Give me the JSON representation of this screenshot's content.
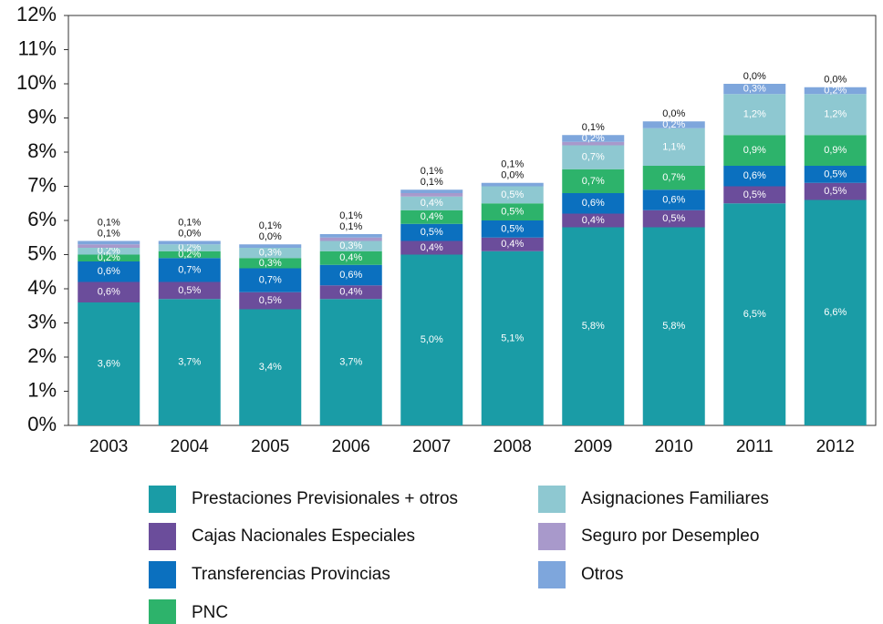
{
  "chart_data": {
    "type": "stacked_bar",
    "categories": [
      "2003",
      "2004",
      "2005",
      "2006",
      "2007",
      "2008",
      "2009",
      "2010",
      "2011",
      "2012"
    ],
    "series": [
      {
        "name": "Prestaciones Previsionales + otros",
        "color": "#1a9ca6",
        "values": [
          3.6,
          3.7,
          3.4,
          3.7,
          5.0,
          5.1,
          5.8,
          5.8,
          6.5,
          6.6
        ],
        "value_labels": [
          "3,6%",
          "3,7%",
          "3,4%",
          "3,7%",
          "5,0%",
          "5,1%",
          "5,8%",
          "5,8%",
          "6,5%",
          "6,6%"
        ]
      },
      {
        "name": "Cajas Nacionales Especiales",
        "color": "#6b4d9b",
        "values": [
          0.6,
          0.5,
          0.5,
          0.4,
          0.4,
          0.4,
          0.4,
          0.5,
          0.5,
          0.5
        ],
        "value_labels": [
          "0,6%",
          "0,5%",
          "0,5%",
          "0,4%",
          "0,4%",
          "0,4%",
          "0,4%",
          "0,5%",
          "0,5%",
          "0,5%"
        ]
      },
      {
        "name": "Transferencias Provincias",
        "color": "#0b70bf",
        "values": [
          0.6,
          0.7,
          0.7,
          0.6,
          0.5,
          0.5,
          0.6,
          0.6,
          0.6,
          0.5
        ],
        "value_labels": [
          "0,6%",
          "0,7%",
          "0,7%",
          "0,6%",
          "0,5%",
          "0,5%",
          "0,6%",
          "0,6%",
          "0,6%",
          "0,5%"
        ]
      },
      {
        "name": "PNC",
        "color": "#2db36b",
        "values": [
          0.2,
          0.2,
          0.3,
          0.4,
          0.4,
          0.5,
          0.7,
          0.7,
          0.9,
          0.9
        ],
        "value_labels": [
          "0,2%",
          "0,2%",
          "0,3%",
          "0,4%",
          "0,4%",
          "0,5%",
          "0,7%",
          "0,7%",
          "0,9%",
          "0,9%"
        ]
      },
      {
        "name": "Asignaciones Familiares",
        "color": "#8ec8d1",
        "values": [
          0.2,
          0.2,
          0.3,
          0.3,
          0.4,
          0.5,
          0.7,
          1.1,
          1.2,
          1.2
        ],
        "value_labels": [
          "0,2%",
          "0,2%",
          "0,3%",
          "0,3%",
          "0,4%",
          "0,5%",
          "0,7%",
          "1,1%",
          "1,2%",
          "1,2%"
        ]
      },
      {
        "name": "Seguro por Desempleo",
        "color": "#a899cb",
        "values": [
          0.1,
          0.0,
          0.0,
          0.1,
          0.1,
          0.0,
          0.1,
          0.0,
          0.0,
          0.0
        ],
        "value_labels": [
          "0,1%",
          "0,0%",
          "0,0%",
          "0,1%",
          "0,1%",
          "0,0%",
          "0,1%",
          "0,0%",
          "0,0%",
          "0,0%"
        ]
      },
      {
        "name": "Otros",
        "color": "#7ea6dc",
        "values": [
          0.1,
          0.1,
          0.1,
          0.1,
          0.1,
          0.1,
          0.2,
          0.2,
          0.3,
          0.2
        ],
        "value_labels": [
          "0,1%",
          "0,1%",
          "0,1%",
          "0,1%",
          "0,1%",
          "0,1%",
          "0,2%",
          "0,2%",
          "0,3%",
          "0,2%"
        ]
      }
    ],
    "ylim": [
      0,
      12
    ],
    "yticks": [
      {
        "value": 0,
        "label": "0%"
      },
      {
        "value": 1,
        "label": "1%"
      },
      {
        "value": 2,
        "label": "2%"
      },
      {
        "value": 3,
        "label": "3%"
      },
      {
        "value": 4,
        "label": "4%"
      },
      {
        "value": 5,
        "label": "5%"
      },
      {
        "value": 6,
        "label": "6%"
      },
      {
        "value": 7,
        "label": "7%"
      },
      {
        "value": 8,
        "label": "8%"
      },
      {
        "value": 9,
        "label": "9%"
      },
      {
        "value": 10,
        "label": "10%"
      },
      {
        "value": 11,
        "label": "11%"
      },
      {
        "value": 12,
        "label": "12%"
      }
    ],
    "grid": false
  }
}
